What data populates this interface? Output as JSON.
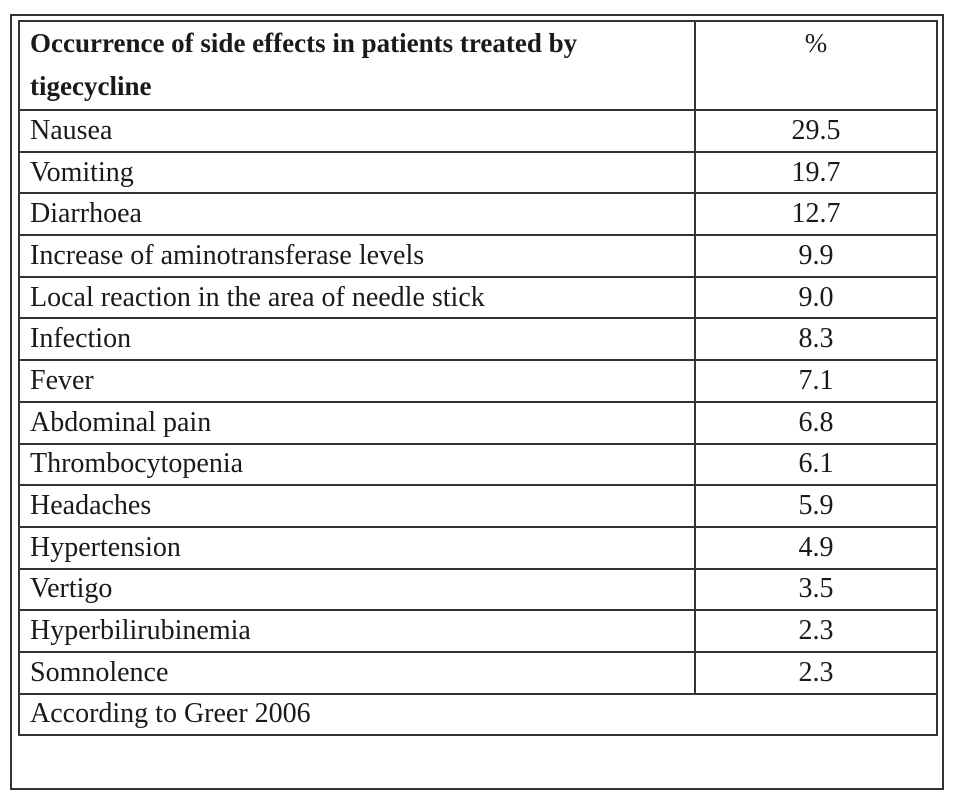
{
  "table": {
    "header": {
      "label": "Occurrence of side effects in patients treated by tigecycline",
      "unit": "%"
    },
    "rows": [
      {
        "effect": "Nausea",
        "percent": "29.5"
      },
      {
        "effect": "Vomiting",
        "percent": "19.7"
      },
      {
        "effect": "Diarrhoea",
        "percent": "12.7"
      },
      {
        "effect": "Increase of aminotransferase levels",
        "percent": "9.9"
      },
      {
        "effect": "Local reaction in the area of needle stick",
        "percent": "9.0"
      },
      {
        "effect": "Infection",
        "percent": "8.3"
      },
      {
        "effect": "Fever",
        "percent": "7.1"
      },
      {
        "effect": "Abdominal pain",
        "percent": "6.8"
      },
      {
        "effect": "Thrombocytopenia",
        "percent": "6.1"
      },
      {
        "effect": "Headaches",
        "percent": "5.9"
      },
      {
        "effect": "Hypertension",
        "percent": "4.9"
      },
      {
        "effect": "Vertigo",
        "percent": "3.5"
      },
      {
        "effect": "Hyperbilirubinemia",
        "percent": "2.3"
      },
      {
        "effect": "Somnolence",
        "percent": "2.3"
      }
    ],
    "footnote": "According to Greer 2006"
  }
}
